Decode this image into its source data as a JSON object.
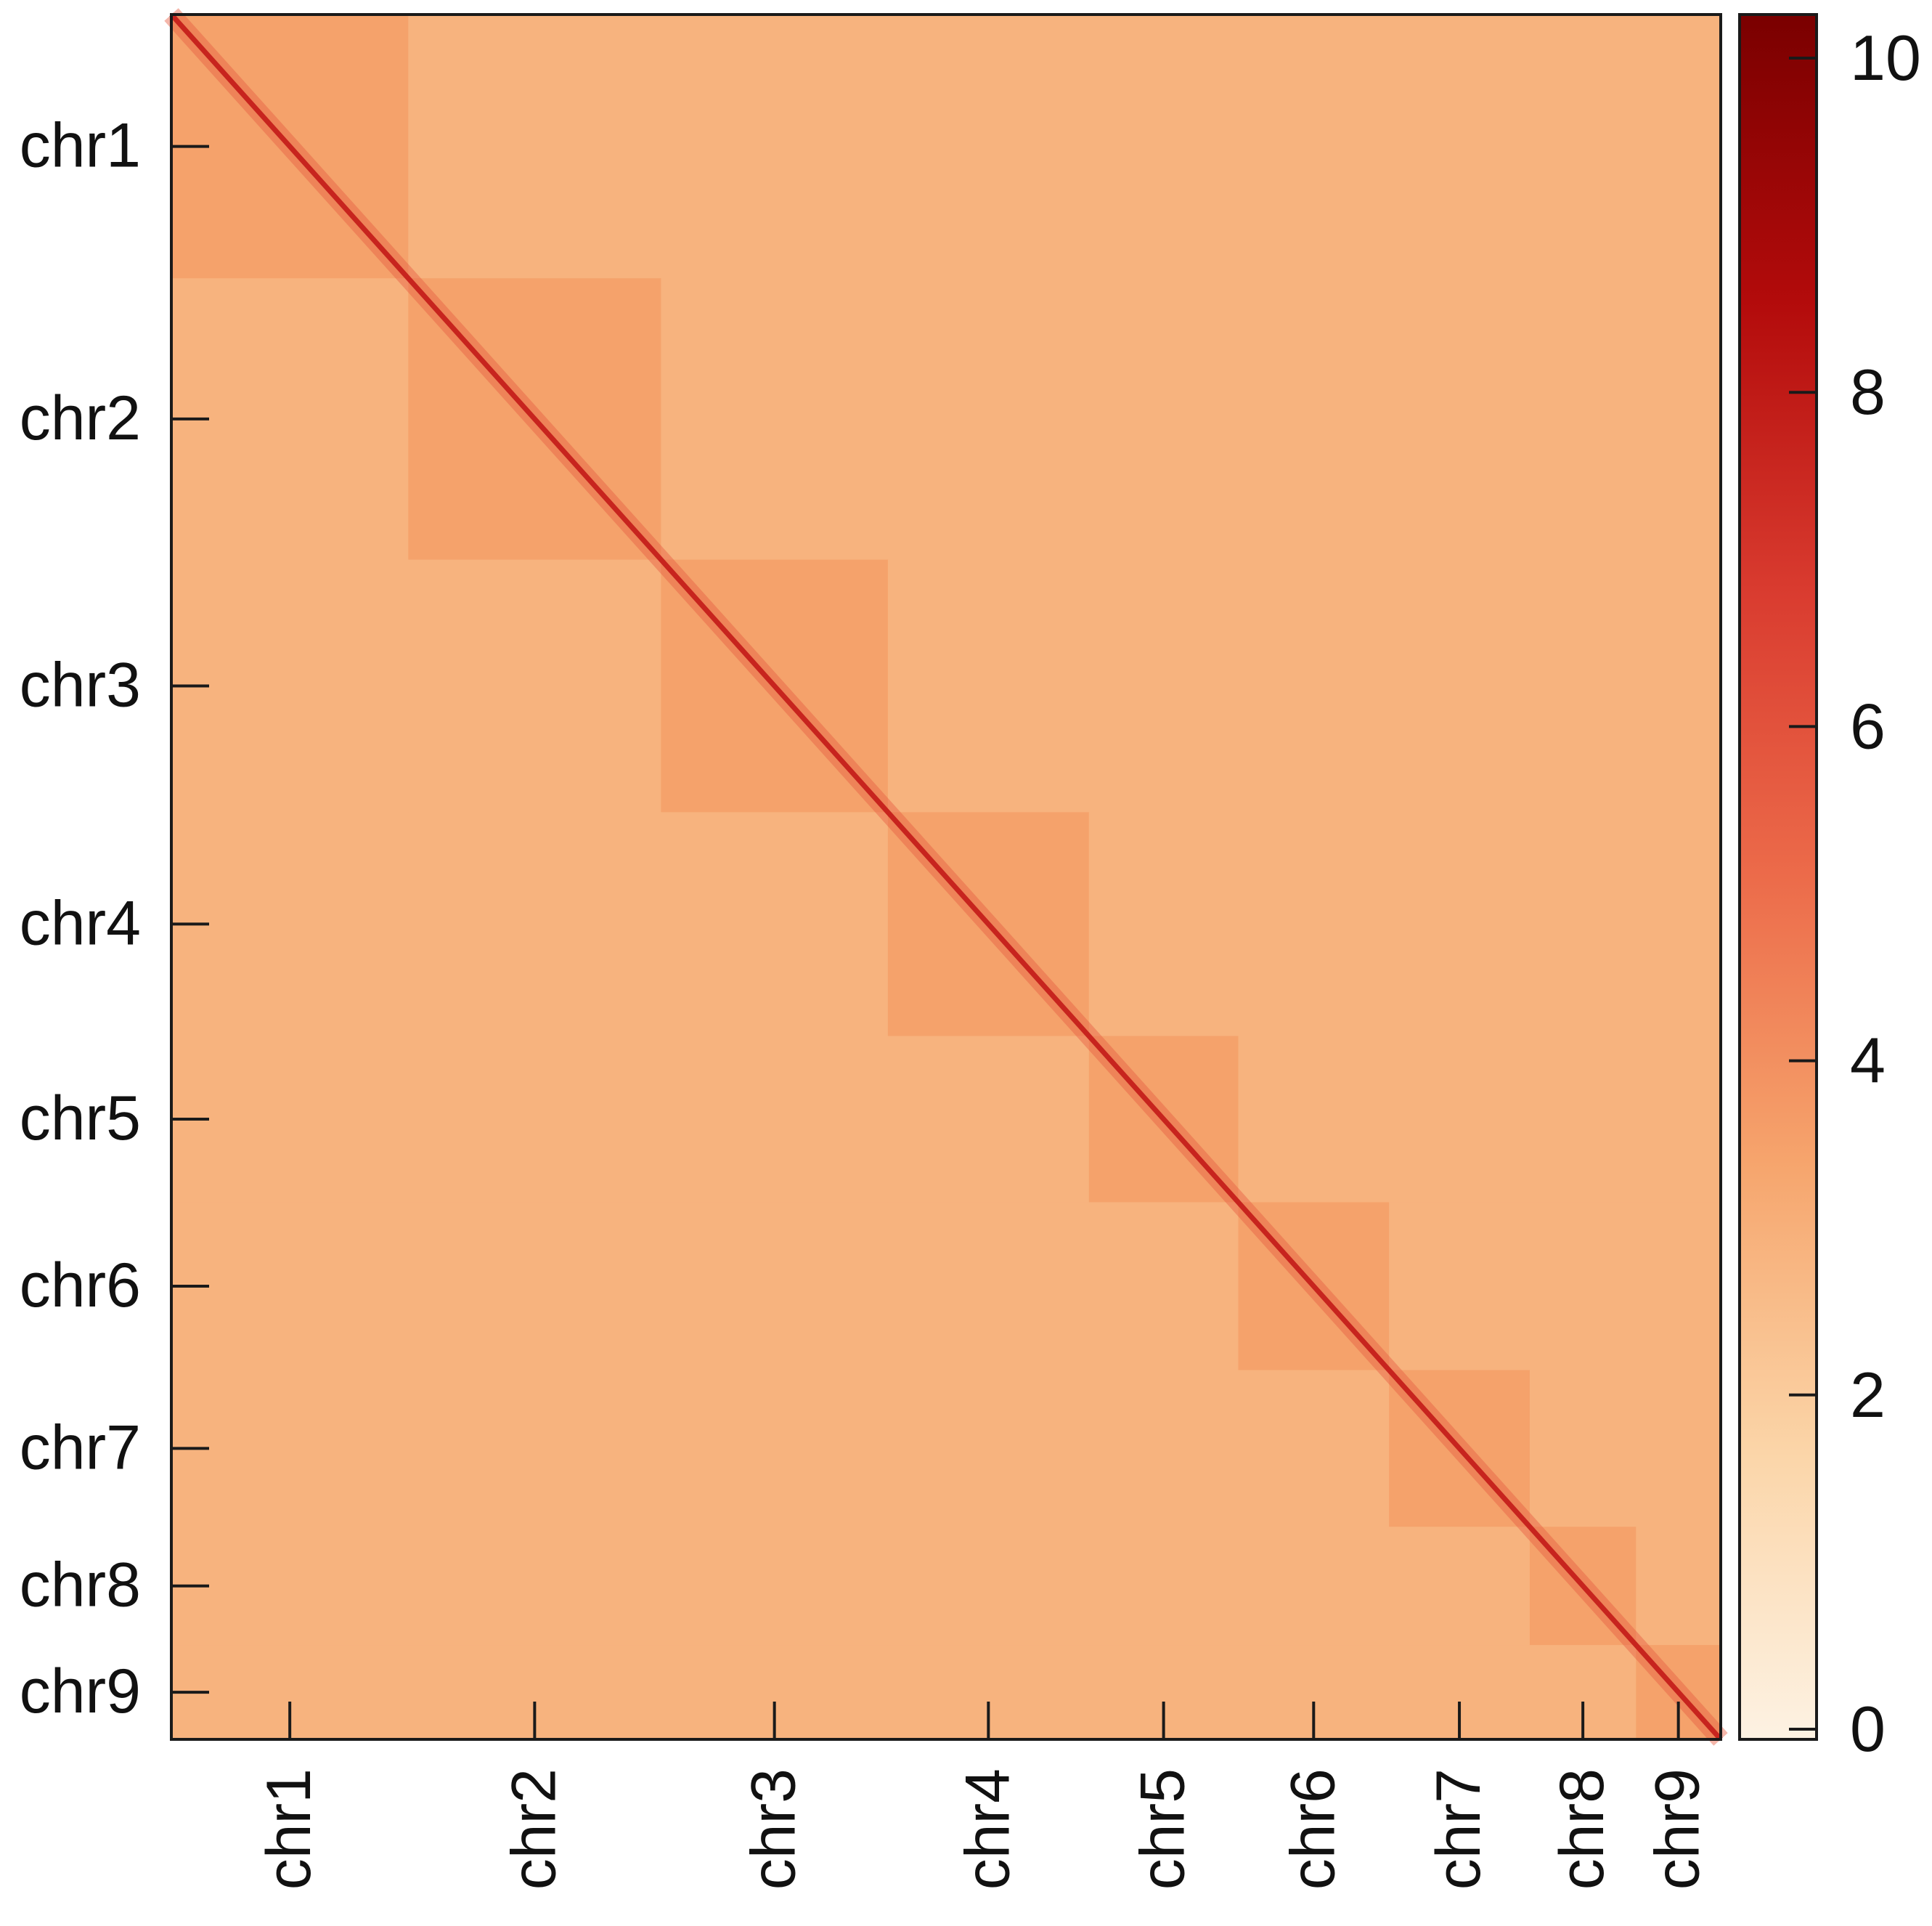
{
  "chart_data": {
    "type": "heatmap",
    "title": "",
    "xlabel": "",
    "ylabel": "",
    "chromosomes": [
      "chr1",
      "chr2",
      "chr3",
      "chr4",
      "chr5",
      "chr6",
      "chr7",
      "chr8",
      "chr9"
    ],
    "chromosome_sizes": [
      330,
      352,
      316,
      280,
      208,
      210,
      196,
      148,
      118
    ],
    "diagonal_value": 7.6,
    "intra_chromosome_value": 3.5,
    "inter_chromosome_value": 2.9,
    "colorbar": {
      "range": [
        0,
        10.2
      ],
      "ticks": [
        0,
        2,
        4,
        6,
        8,
        10
      ],
      "tick_labels": [
        "0",
        "2",
        "4",
        "6",
        "8",
        "10"
      ],
      "colors": [
        "#fdf2e3",
        "#fbd5a8",
        "#f6a56d",
        "#ec6b4a",
        "#d93b2f",
        "#b30b0b",
        "#7a0000"
      ]
    },
    "axis_color": "#1a1a1a"
  }
}
